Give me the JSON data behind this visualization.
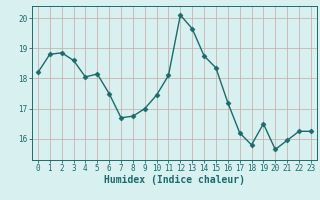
{
  "x": [
    0,
    1,
    2,
    3,
    4,
    5,
    6,
    7,
    8,
    9,
    10,
    11,
    12,
    13,
    14,
    15,
    16,
    17,
    18,
    19,
    20,
    21,
    22,
    23
  ],
  "y": [
    18.2,
    18.8,
    18.85,
    18.6,
    18.05,
    18.15,
    17.5,
    16.7,
    16.75,
    17.0,
    17.45,
    18.1,
    20.1,
    19.65,
    18.75,
    18.35,
    17.2,
    16.2,
    15.8,
    16.5,
    15.65,
    15.95,
    16.25,
    16.25
  ],
  "line_color": "#1a6b6b",
  "marker": "D",
  "marker_size": 2.5,
  "bg_color": "#d8f0f0",
  "grid_color": "#c8a8a8",
  "xlabel": "Humidex (Indice chaleur)",
  "ylim": [
    15.3,
    20.4
  ],
  "yticks": [
    16,
    17,
    18,
    19,
    20
  ],
  "xticks": [
    0,
    1,
    2,
    3,
    4,
    5,
    6,
    7,
    8,
    9,
    10,
    11,
    12,
    13,
    14,
    15,
    16,
    17,
    18,
    19,
    20,
    21,
    22,
    23
  ],
  "xtick_labels": [
    "0",
    "1",
    "2",
    "3",
    "4",
    "5",
    "6",
    "7",
    "8",
    "9",
    "10",
    "11",
    "12",
    "13",
    "14",
    "15",
    "16",
    "17",
    "18",
    "19",
    "20",
    "21",
    "22",
    "23"
  ],
  "tick_color": "#1a6b6b",
  "label_fontsize": 7,
  "tick_fontsize": 5.5,
  "linewidth": 1.0
}
